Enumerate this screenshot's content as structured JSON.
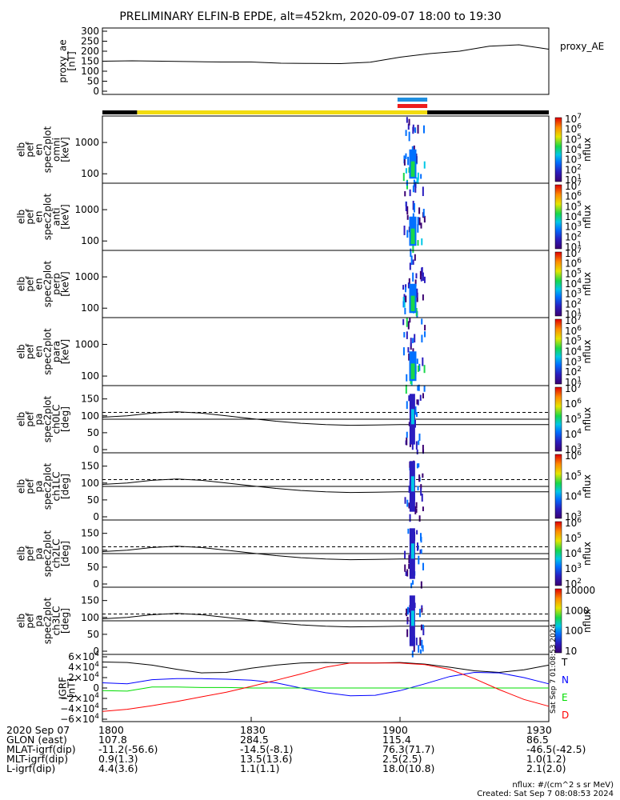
{
  "title": "PRELIMINARY ELFIN-B EPDE, alt=452km, 2020-09-07 18:00 to 19:30",
  "chart_data": [
    {
      "type": "line",
      "panel": "proxy_ae",
      "ylabel": [
        "proxy_ae",
        "[nT]"
      ],
      "legend": "proxy_AE",
      "yticks": [
        "0",
        "50",
        "100",
        "150",
        "200",
        "250",
        "300"
      ],
      "ylim": [
        0,
        300
      ],
      "x_min": [
        0,
        6,
        12,
        18,
        24,
        30,
        36,
        42,
        48,
        54,
        60,
        66,
        72,
        78,
        84,
        90
      ],
      "y": [
        150,
        152,
        150,
        148,
        146,
        146,
        140,
        139,
        138,
        145,
        170,
        188,
        200,
        225,
        232,
        210
      ]
    },
    {
      "type": "heatmap",
      "panel": "pef_en_spec2plot_omni",
      "ylabel": [
        "elb",
        "pef",
        "en",
        "spec2plot",
        "omni",
        "[keV]"
      ],
      "yticks": [
        "100",
        "1000"
      ],
      "ylim_keV": [
        50,
        7000
      ],
      "colorbar": {
        "label": "nflux",
        "ticks": [
          "10^1",
          "10^2",
          "10^3",
          "10^4",
          "10^5",
          "10^6",
          "10^7"
        ]
      }
    },
    {
      "type": "heatmap",
      "panel": "pef_en_spec2plot_anti",
      "ylabel": [
        "elb",
        "pef",
        "en",
        "spec2plot",
        "anti",
        "[keV]"
      ],
      "yticks": [
        "100",
        "1000"
      ],
      "ylim_keV": [
        50,
        7000
      ],
      "colorbar": {
        "label": "nflux",
        "ticks": [
          "10^1",
          "10^2",
          "10^3",
          "10^4",
          "10^5",
          "10^6",
          "10^7"
        ]
      }
    },
    {
      "type": "heatmap",
      "panel": "pef_en_spec2plot_perp",
      "ylabel": [
        "elb",
        "pef",
        "en",
        "spec2plot",
        "perp",
        "[keV]"
      ],
      "yticks": [
        "100",
        "1000"
      ],
      "ylim_keV": [
        50,
        7000
      ],
      "colorbar": {
        "label": "nflux",
        "ticks": [
          "10^1",
          "10^2",
          "10^3",
          "10^4",
          "10^5",
          "10^6",
          "10^7"
        ]
      }
    },
    {
      "type": "heatmap",
      "panel": "pef_en_spec2plot_para",
      "ylabel": [
        "elb",
        "pef",
        "en",
        "spec2plot",
        "para",
        "[keV]"
      ],
      "yticks": [
        "100",
        "1000"
      ],
      "ylim_keV": [
        50,
        7000
      ],
      "colorbar": {
        "label": "nflux",
        "ticks": [
          "10^1",
          "10^2",
          "10^3",
          "10^4",
          "10^5",
          "10^6",
          "10^7"
        ]
      }
    },
    {
      "type": "heatmap",
      "panel": "pef_pa_spec2plot_ch0LC",
      "ylabel": [
        "elb",
        "pef",
        "pa",
        "spec2plot",
        "ch0LC",
        "[deg]"
      ],
      "yticks": [
        "0",
        "50",
        "100",
        "150"
      ],
      "ylim_deg": [
        0,
        180
      ],
      "colorbar": {
        "label": "nflux",
        "ticks": [
          "10^3",
          "10^4",
          "10^5",
          "10^6",
          "10^7"
        ]
      }
    },
    {
      "type": "heatmap",
      "panel": "pef_pa_spec2plot_ch1LC",
      "ylabel": [
        "elb",
        "pef",
        "pa",
        "spec2plot",
        "ch1LC",
        "[deg]"
      ],
      "yticks": [
        "0",
        "50",
        "100",
        "150"
      ],
      "ylim_deg": [
        0,
        180
      ],
      "colorbar": {
        "label": "nflux",
        "ticks": [
          "10^3",
          "10^4",
          "10^5",
          "10^6"
        ]
      }
    },
    {
      "type": "heatmap",
      "panel": "pef_pa_spec2plot_ch2LC",
      "ylabel": [
        "elb",
        "pef",
        "pa",
        "spec2plot",
        "ch2LC",
        "[deg]"
      ],
      "yticks": [
        "0",
        "50",
        "100",
        "150"
      ],
      "ylim_deg": [
        0,
        180
      ],
      "colorbar": {
        "label": "nflux",
        "ticks": [
          "10^2",
          "10^3",
          "10^4",
          "10^5",
          "10^6"
        ]
      }
    },
    {
      "type": "heatmap",
      "panel": "pef_pa_spec2plot_ch3LC",
      "ylabel": [
        "elb",
        "pef",
        "pa",
        "spec2plot",
        "ch3LC",
        "[deg]"
      ],
      "yticks": [
        "0",
        "50",
        "100",
        "150"
      ],
      "ylim_deg": [
        0,
        180
      ],
      "colorbar": {
        "label": "nflux",
        "ticks": [
          "10",
          "100",
          "1000",
          "10000"
        ]
      }
    },
    {
      "type": "line",
      "panel": "IGRF",
      "ylabel": [
        "IGRF",
        "[nT]"
      ],
      "yticks": [
        "−6×10^4",
        "−4×10^4",
        "−2×10^4",
        "0",
        "2×10^4",
        "4×10^4",
        "6×10^4"
      ],
      "ylim": [
        -60000,
        60000
      ],
      "x_min": [
        0,
        5,
        10,
        15,
        20,
        25,
        30,
        35,
        40,
        45,
        50,
        55,
        60,
        65,
        70,
        75,
        80,
        85,
        90
      ],
      "series": [
        {
          "name": "T",
          "color": "#000000",
          "values": [
            50000,
            49000,
            44000,
            36000,
            29000,
            30000,
            38000,
            44000,
            48000,
            49000,
            48000,
            48000,
            49000,
            46000,
            40000,
            33000,
            30000,
            35000,
            44000
          ]
        },
        {
          "name": "N",
          "color": "#0000ff",
          "values": [
            10000,
            8000,
            16000,
            18000,
            18000,
            17000,
            15000,
            10000,
            0,
            -9000,
            -15000,
            -14000,
            -5000,
            8000,
            22000,
            30000,
            29000,
            20000,
            8000
          ]
        },
        {
          "name": "E",
          "color": "#00dd00",
          "values": [
            -5000,
            -6000,
            2000,
            2000,
            1000,
            1000,
            0,
            0,
            0,
            0,
            0,
            0,
            0,
            0,
            0,
            0,
            0,
            0,
            0
          ]
        },
        {
          "name": "D",
          "color": "#ff0000",
          "values": [
            -45000,
            -41000,
            -34000,
            -26000,
            -17000,
            -8000,
            3000,
            15000,
            27000,
            40000,
            48000,
            48000,
            48000,
            45000,
            36000,
            18000,
            -3000,
            -22000,
            -35000
          ]
        }
      ]
    }
  ],
  "xticks": [
    "1800",
    "1830",
    "1900",
    "1930"
  ],
  "colorbar_label": "nflux",
  "orbit_bar": {
    "colors": [
      "#000000",
      "#f2dc10",
      "#1f8fe0",
      "#ee1c1c"
    ]
  },
  "footer": {
    "rows": [
      {
        "label": "2020 Sep 07",
        "v": [
          "1800",
          "1830",
          "1900",
          "1930"
        ]
      },
      {
        "label": "GLON (east)",
        "v": [
          "107.8",
          "284.5",
          "115.4",
          "86.5"
        ]
      },
      {
        "label": "MLAT-igrf(dip)",
        "v": [
          "-11.2(-56.6)",
          "-14.5(-8.1)",
          "76.3(71.7)",
          "-46.5(-42.5)"
        ]
      },
      {
        "label": "MLT-igrf(dip)",
        "v": [
          "0.9(1.3)",
          "13.5(13.6)",
          "2.5(2.5)",
          "1.0(1.2)"
        ]
      },
      {
        "label": "L-igrf(dip)",
        "v": [
          "4.4(3.6)",
          "1.1(1.1)",
          "18.0(10.8)",
          "2.1(2.0)"
        ]
      }
    ],
    "units": "nflux: #/(cm^2 s sr MeV)",
    "created": "Created: Sat Sep  7 08:08:53 2024",
    "side_stamp": "Sat Sep  7 01:08:53 2024"
  }
}
